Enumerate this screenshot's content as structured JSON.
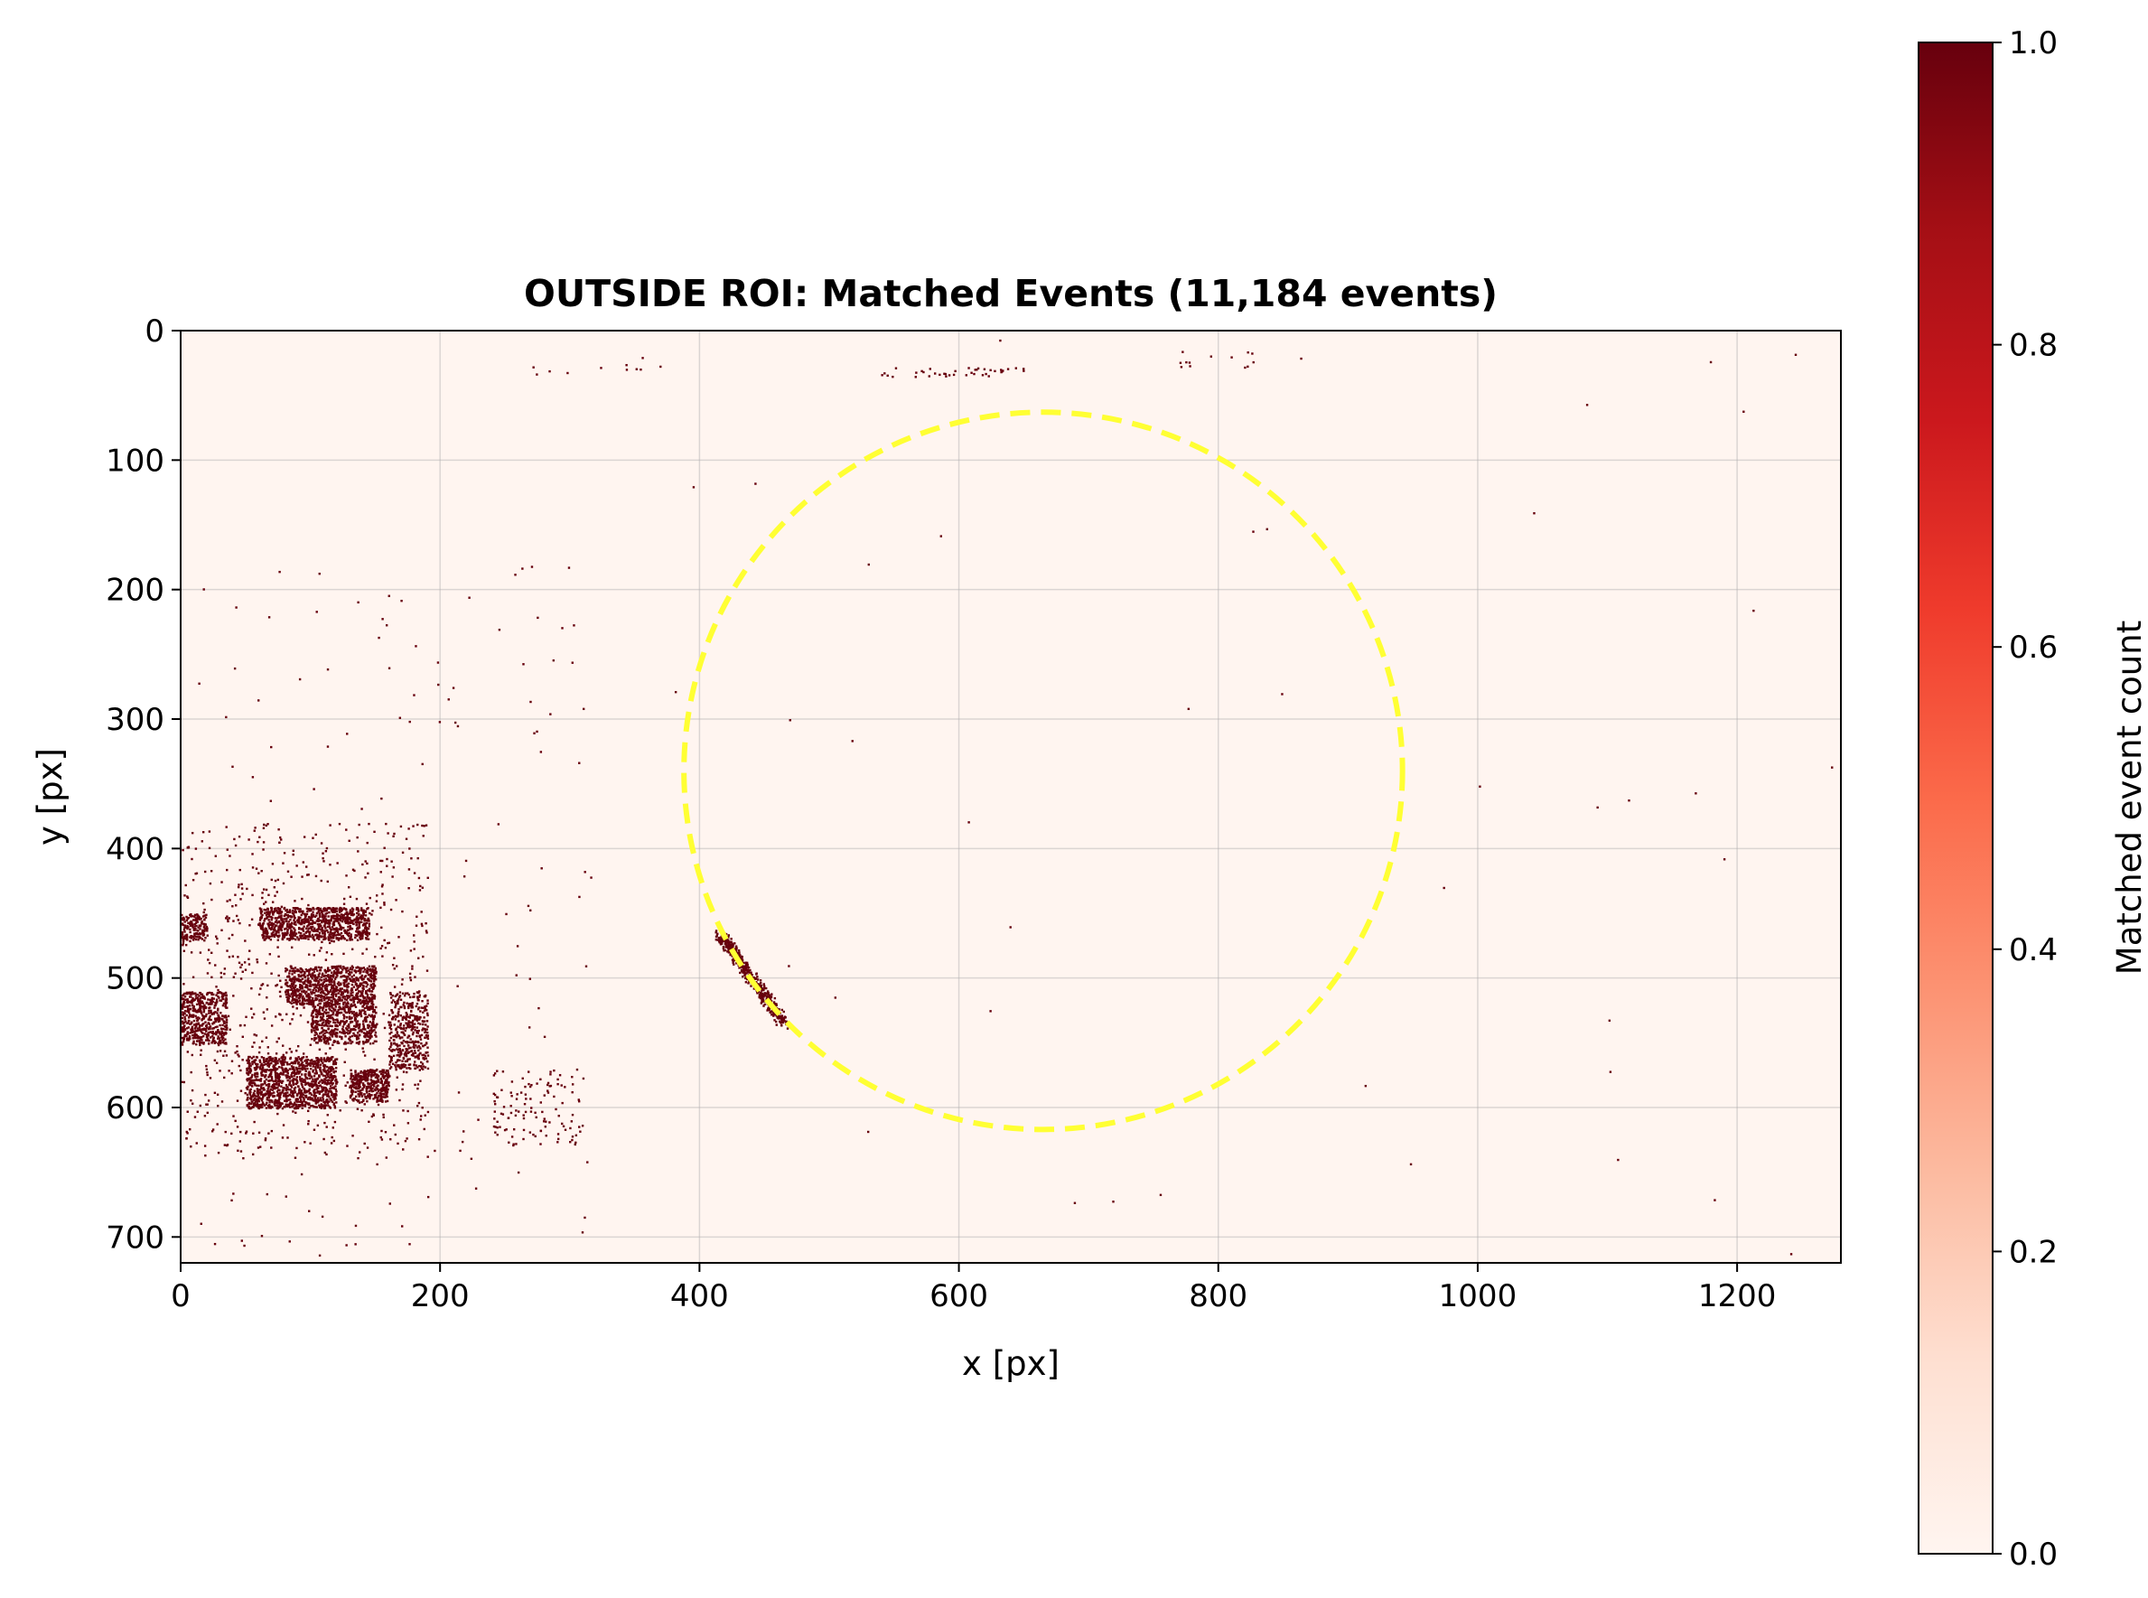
{
  "chart_data": {
    "type": "heatmap",
    "title": "OUTSIDE ROI: Matched Events (11,184 events)",
    "xlabel": "x [px]",
    "ylabel": "y [px]",
    "xlim": [
      0,
      1280
    ],
    "ylim": [
      720,
      0
    ],
    "y_axis_inverted": true,
    "xticks": [
      0,
      200,
      400,
      600,
      800,
      1000,
      1200
    ],
    "yticks": [
      0,
      100,
      200,
      300,
      400,
      500,
      600,
      700
    ],
    "grid": true,
    "colormap": "Reds",
    "colorbar": {
      "label": "Matched event count",
      "range": [
        0,
        1
      ],
      "ticks": [
        "0.0",
        "0.2",
        "0.4",
        "0.6",
        "0.8",
        "1.0"
      ],
      "colors": [
        "#fff5f0",
        "#fee0d2",
        "#fcbba1",
        "#fc9272",
        "#fb6a4a",
        "#ef3b2c",
        "#cb181d",
        "#a50f15",
        "#67000d"
      ]
    },
    "roi_circle": {
      "center": [
        665,
        340
      ],
      "radius": 277,
      "style": "dashed",
      "color": "#ffff33"
    },
    "event_clusters": [
      {
        "x_range": [
          0,
          190
        ],
        "y_range": [
          440,
          600
        ],
        "description": "dense"
      },
      {
        "x_range": [
          415,
          460
        ],
        "y_range": [
          465,
          530
        ],
        "description": "arc along ROI edge"
      }
    ]
  }
}
